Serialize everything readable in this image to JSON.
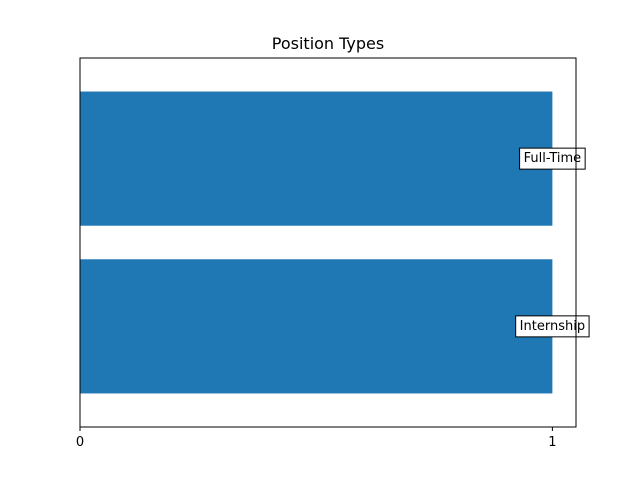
{
  "chart_data": {
    "type": "bar",
    "orientation": "horizontal",
    "title": "Position Types",
    "xlabel": "",
    "ylabel": "",
    "categories": [
      "Internship",
      "Full-Time"
    ],
    "values": [
      1,
      1
    ],
    "xlim": [
      0,
      1.05
    ],
    "xticks": [
      0,
      1
    ],
    "xtick_labels": [
      "0",
      "1"
    ],
    "yticks_shown": false,
    "grid": false,
    "legend": "none",
    "bar_color": "#1f77b4",
    "data_labels": [
      "Internship",
      "Full-Time"
    ]
  }
}
